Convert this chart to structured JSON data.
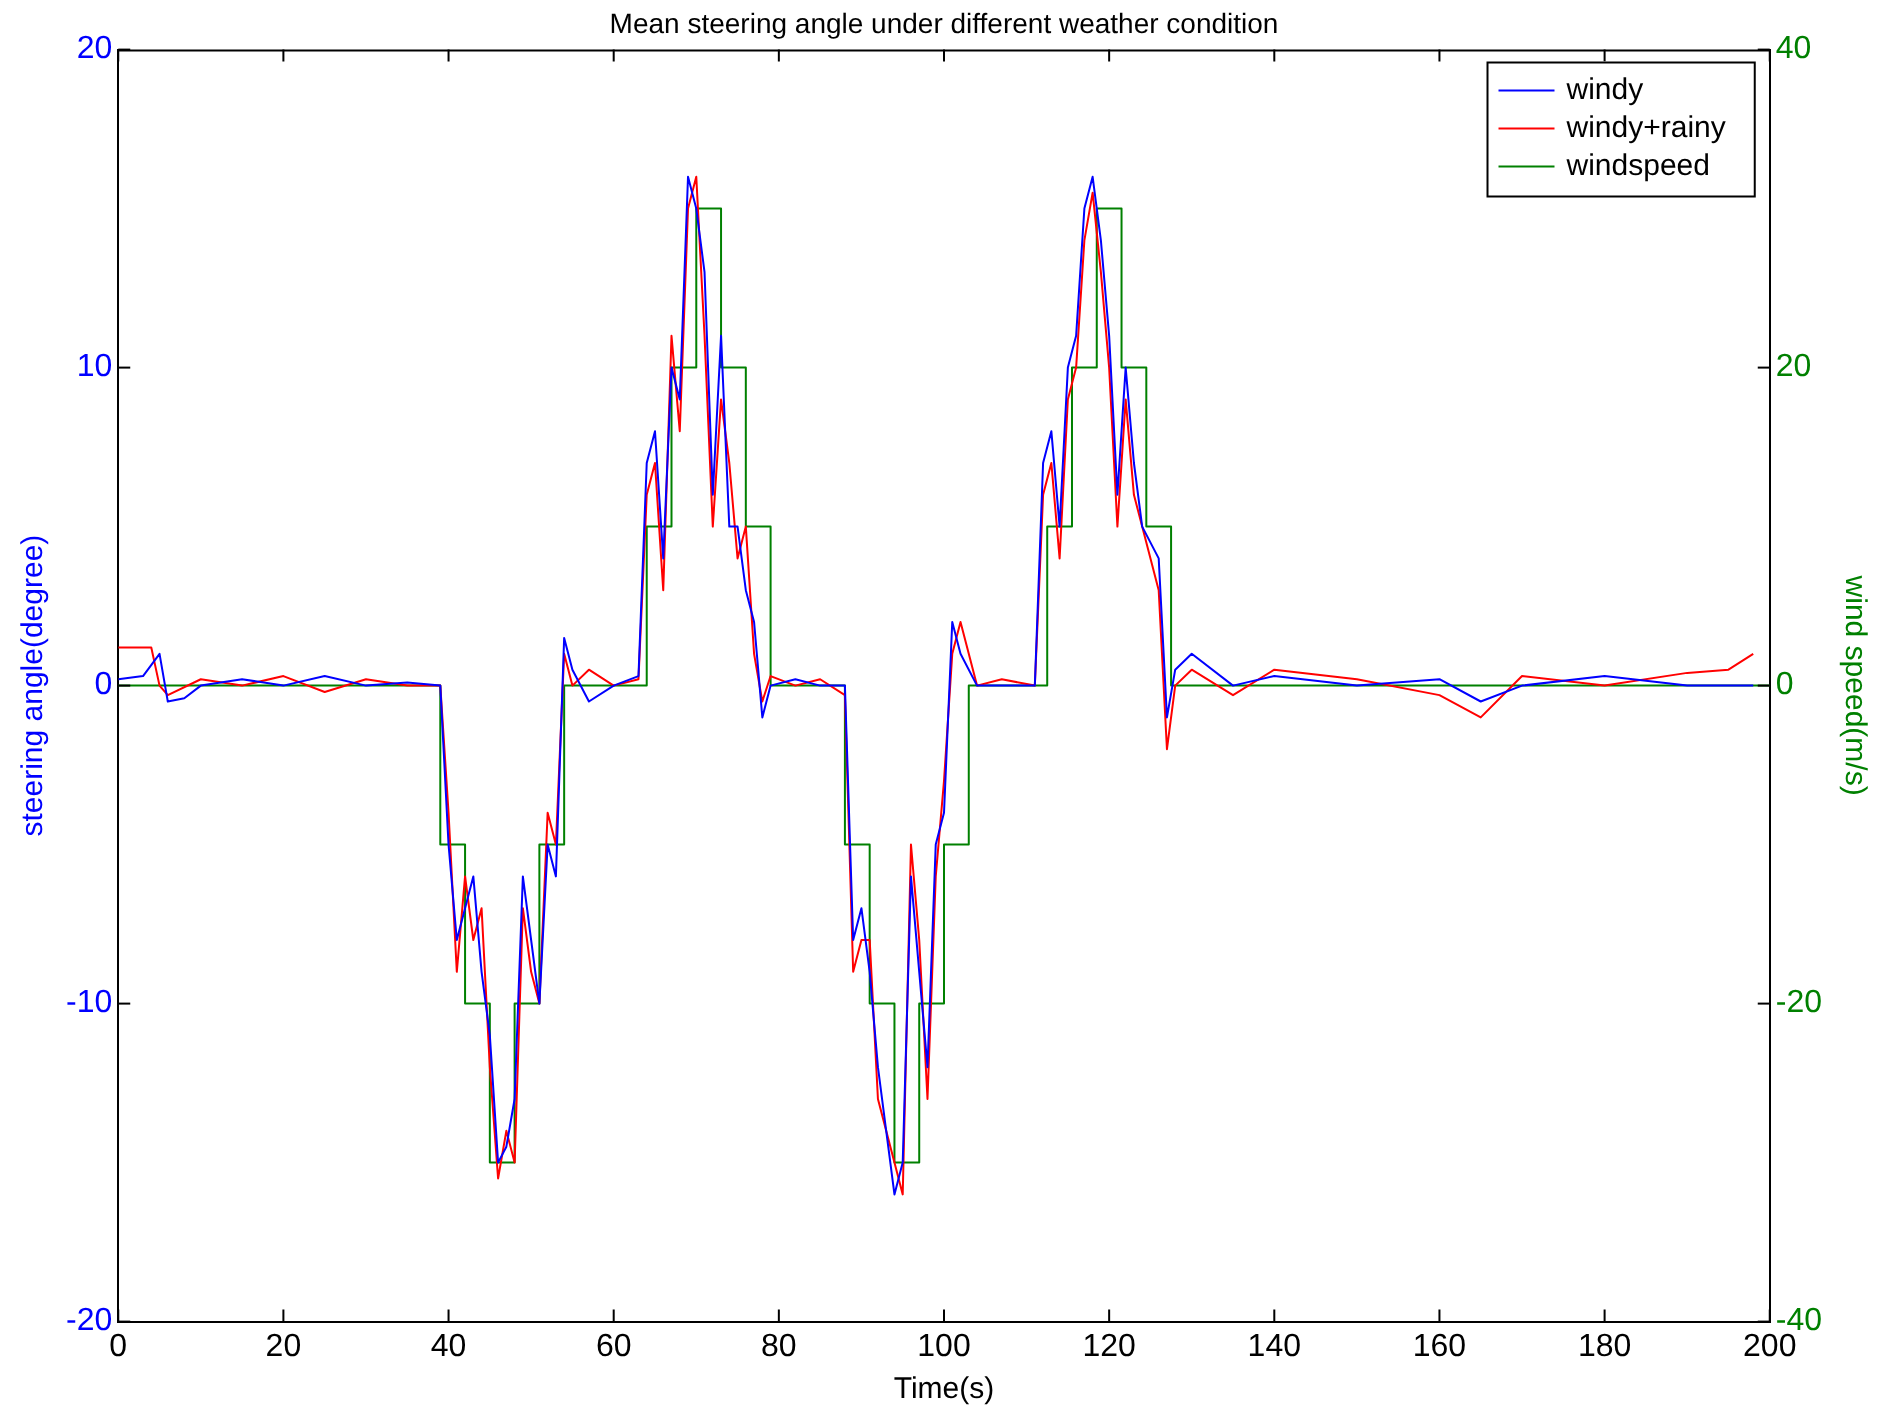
{
  "chart_data": {
    "type": "line",
    "title": "Mean steering angle under different weather condition",
    "xlabel": "Time(s)",
    "ylabel": "steering angle(degree)",
    "y2label": "wind speed(m/s)",
    "xlim": [
      0,
      200
    ],
    "xticks": [
      0,
      20,
      40,
      60,
      80,
      100,
      120,
      140,
      160,
      180,
      200
    ],
    "ylim": [
      -20,
      20
    ],
    "yticks": [
      -20,
      -10,
      0,
      10,
      20
    ],
    "y2lim": [
      -40,
      40
    ],
    "y2ticks": [
      -40,
      -20,
      0,
      20,
      40
    ],
    "grid": false,
    "legend": "top right",
    "marker": "none",
    "series": [
      {
        "name": "windy",
        "color": "#0000ff",
        "x": [
          0,
          3,
          5,
          6,
          8,
          10,
          15,
          20,
          25,
          30,
          35,
          39,
          40,
          41,
          42,
          43,
          44,
          45,
          46,
          47,
          48,
          49,
          50,
          51,
          52,
          53,
          54,
          55,
          57,
          60,
          63,
          64,
          65,
          66,
          67,
          68,
          69,
          70,
          71,
          72,
          73,
          74,
          75,
          76,
          77,
          78,
          79,
          82,
          85,
          88,
          89,
          90,
          91,
          92,
          93,
          94,
          95,
          96,
          97,
          98,
          99,
          100,
          101,
          102,
          104,
          107,
          111,
          112,
          113,
          114,
          115,
          116,
          117,
          118,
          119,
          120,
          121,
          122,
          123,
          124,
          126,
          127,
          128,
          130,
          135,
          140,
          150,
          160,
          165,
          170,
          180,
          190,
          198
        ],
        "values": [
          0.2,
          0.3,
          1.0,
          -0.5,
          -0.4,
          0,
          0.2,
          0,
          0.3,
          0,
          0.1,
          0,
          -5,
          -8,
          -7,
          -6,
          -9,
          -11,
          -15,
          -14.5,
          -13,
          -6,
          -8,
          -10,
          -5,
          -6,
          1.5,
          0.5,
          -0.5,
          0,
          0.3,
          7,
          8,
          4,
          10,
          9,
          16,
          15,
          13,
          6,
          11,
          5,
          5,
          3,
          2,
          -1,
          0,
          0.2,
          0,
          0,
          -8,
          -7,
          -9,
          -12,
          -14,
          -16,
          -15,
          -6,
          -9,
          -12,
          -5,
          -4,
          2,
          1,
          0,
          0,
          0,
          7,
          8,
          5,
          10,
          11,
          15,
          16,
          14,
          11,
          6,
          10,
          7,
          5,
          4,
          -1,
          0.5,
          1,
          0,
          0.3,
          0,
          0.2,
          -0.5,
          0,
          0.3,
          0,
          0
        ]
      },
      {
        "name": "windy+rainy",
        "color": "#ff0000",
        "x": [
          0,
          4,
          5,
          6,
          10,
          15,
          20,
          25,
          30,
          35,
          39,
          40,
          41,
          42,
          43,
          44,
          45,
          46,
          47,
          48,
          49,
          50,
          51,
          52,
          53,
          54,
          55,
          57,
          60,
          63,
          64,
          65,
          66,
          67,
          68,
          69,
          70,
          71,
          72,
          73,
          74,
          75,
          76,
          77,
          78,
          79,
          82,
          85,
          88,
          89,
          90,
          91,
          92,
          93,
          94,
          95,
          96,
          97,
          98,
          99,
          100,
          101,
          102,
          104,
          107,
          111,
          112,
          113,
          114,
          115,
          116,
          117,
          118,
          119,
          120,
          121,
          122,
          123,
          124,
          126,
          127,
          128,
          130,
          135,
          140,
          150,
          160,
          165,
          170,
          180,
          190,
          195,
          198
        ],
        "values": [
          1.2,
          1.2,
          0,
          -0.3,
          0.2,
          0,
          0.3,
          -0.2,
          0.2,
          0,
          0,
          -4,
          -9,
          -6,
          -8,
          -7,
          -12,
          -15.5,
          -14,
          -15,
          -7,
          -9,
          -10,
          -4,
          -5,
          1,
          0,
          0.5,
          0,
          0.2,
          6,
          7,
          3,
          11,
          8,
          15,
          16,
          11,
          5,
          9,
          7,
          4,
          5,
          1,
          -0.5,
          0.3,
          0,
          0.2,
          -0.3,
          -9,
          -8,
          -8,
          -13,
          -14,
          -15,
          -16,
          -5,
          -8,
          -13,
          -6,
          -3,
          1,
          2,
          0,
          0.2,
          0,
          6,
          7,
          4,
          9,
          10,
          14,
          15.5,
          13,
          10,
          5,
          9,
          6,
          5,
          3,
          -2,
          0,
          0.5,
          -0.3,
          0.5,
          0.2,
          -0.3,
          -1,
          0.3,
          0,
          0.4,
          0.5,
          1.0
        ]
      },
      {
        "name": "windspeed",
        "color": "#008000",
        "type": "step",
        "axis": "y2",
        "x": [
          0,
          39,
          42,
          45,
          48,
          51,
          54,
          64,
          67,
          70,
          73,
          76,
          79,
          88,
          91,
          94,
          97,
          100,
          103,
          112.5,
          115.5,
          118.5,
          121.5,
          124.5,
          127.5,
          200
        ],
        "values": [
          0,
          -10,
          -20,
          -30,
          -20,
          -10,
          0,
          10,
          20,
          30,
          20,
          10,
          0,
          -10,
          -20,
          -30,
          -20,
          -10,
          0,
          10,
          20,
          30,
          20,
          10,
          0,
          0
        ]
      }
    ]
  }
}
